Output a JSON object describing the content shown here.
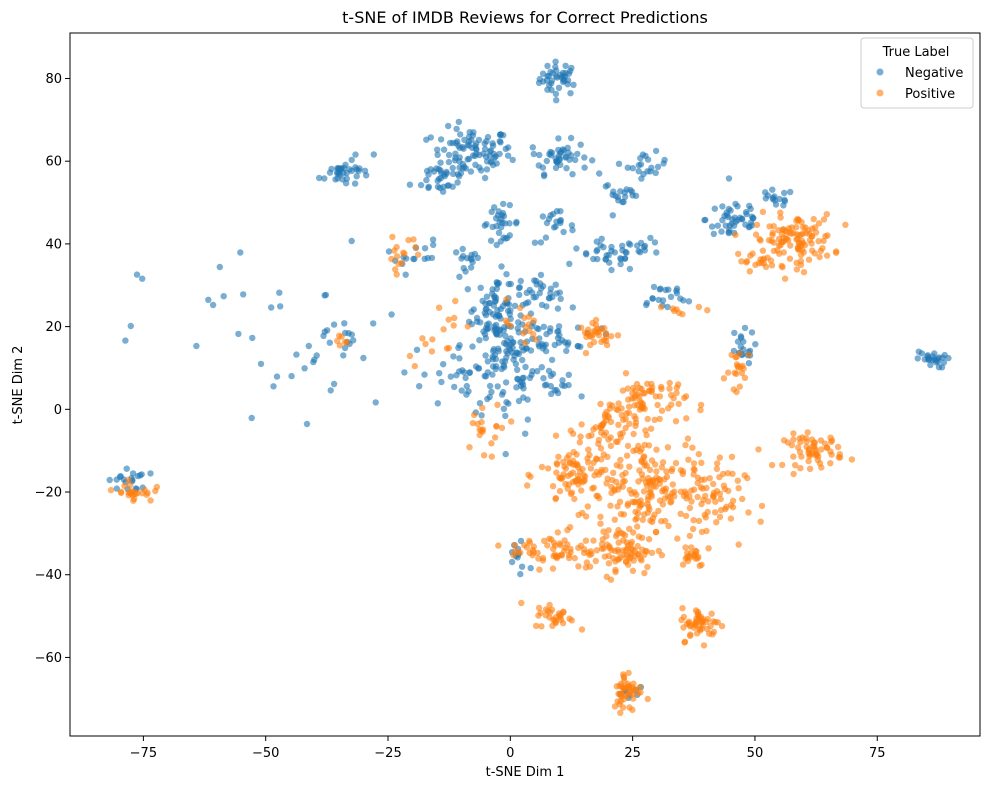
{
  "colors": {
    "negative": "#1f77b4",
    "positive": "#ff7f0e",
    "axis": "#000000",
    "background": "#ffffff"
  },
  "chart_data": {
    "type": "scatter",
    "title": "t-SNE of IMDB Reviews for Correct Predictions",
    "xlabel": "t-SNE Dim 1",
    "ylabel": "t-SNE Dim 2",
    "xlim": [
      -90,
      96
    ],
    "ylim": [
      -79,
      91
    ],
    "xticks": [
      -75,
      -50,
      -25,
      0,
      25,
      50,
      75
    ],
    "yticks": [
      -60,
      -40,
      -20,
      0,
      20,
      40,
      60,
      80
    ],
    "grid": false,
    "legend": {
      "title": "True Label",
      "placement": "top-right"
    },
    "point_alpha": 0.6,
    "series": [
      {
        "name": "Negative",
        "color": "#1f77b4",
        "clusters": [
          {
            "center": [
              10,
              80
            ],
            "spread": [
              2,
              2
            ],
            "n": 40
          },
          {
            "center": [
              -8,
              62
            ],
            "spread": [
              4,
              3
            ],
            "n": 90
          },
          {
            "center": [
              -14,
              56
            ],
            "spread": [
              3,
              2
            ],
            "n": 30
          },
          {
            "center": [
              10,
              61
            ],
            "spread": [
              3,
              2
            ],
            "n": 45
          },
          {
            "center": [
              -35,
              57
            ],
            "spread": [
              2,
              1.5
            ],
            "n": 25
          },
          {
            "center": [
              -32,
              59
            ],
            "spread": [
              2,
              1.5
            ],
            "n": 12
          },
          {
            "center": [
              28,
              59
            ],
            "spread": [
              2,
              1.5
            ],
            "n": 20
          },
          {
            "center": [
              23,
              52
            ],
            "spread": [
              2,
              1.5
            ],
            "n": 18
          },
          {
            "center": [
              -2,
              45
            ],
            "spread": [
              2,
              2
            ],
            "n": 30
          },
          {
            "center": [
              9,
              44
            ],
            "spread": [
              2,
              2
            ],
            "n": 20
          },
          {
            "center": [
              46,
              46
            ],
            "spread": [
              3,
              3
            ],
            "n": 45
          },
          {
            "center": [
              54,
              51
            ],
            "spread": [
              2,
              1
            ],
            "n": 15
          },
          {
            "center": [
              -9,
              35
            ],
            "spread": [
              1.5,
              2
            ],
            "n": 15
          },
          {
            "center": [
              20,
              37
            ],
            "spread": [
              3,
              2
            ],
            "n": 30
          },
          {
            "center": [
              28,
              39
            ],
            "spread": [
              2,
              1
            ],
            "n": 12
          },
          {
            "center": [
              -3,
              25
            ],
            "spread": [
              2,
              4
            ],
            "n": 55
          },
          {
            "center": [
              4,
              28
            ],
            "spread": [
              3,
              2
            ],
            "n": 20
          },
          {
            "center": [
              8,
              28
            ],
            "spread": [
              2,
              2
            ],
            "n": 15
          },
          {
            "center": [
              0,
              12
            ],
            "spread": [
              5,
              8
            ],
            "n": 130
          },
          {
            "center": [
              -10,
              8
            ],
            "spread": [
              4,
              4
            ],
            "n": 30
          },
          {
            "center": [
              10,
              18
            ],
            "spread": [
              4,
              2
            ],
            "n": 30
          },
          {
            "center": [
              31,
              27
            ],
            "spread": [
              3,
              2
            ],
            "n": 20
          },
          {
            "center": [
              47,
              15
            ],
            "spread": [
              1.5,
              2
            ],
            "n": 20
          },
          {
            "center": [
              86,
              12
            ],
            "spread": [
              1.5,
              1
            ],
            "n": 25
          },
          {
            "center": [
              -78,
              -17
            ],
            "spread": [
              2,
              1.5
            ],
            "n": 20
          },
          {
            "center": [
              -35,
              18
            ],
            "spread": [
              1.5,
              2
            ],
            "n": 12
          },
          {
            "center": [
              -20,
              37
            ],
            "spread": [
              3,
              2
            ],
            "n": 15
          },
          {
            "center": [
              -45,
              15
            ],
            "spread": [
              15,
              12
            ],
            "n": 40
          },
          {
            "center": [
              25,
              -69
            ],
            "spread": [
              2,
              1
            ],
            "n": 8
          },
          {
            "center": [
              10,
              5
            ],
            "spread": [
              2,
              2
            ],
            "n": 10
          },
          {
            "center": [
              2,
              -35
            ],
            "spread": [
              2,
              3
            ],
            "n": 12
          }
        ]
      },
      {
        "name": "Positive",
        "color": "#ff7f0e",
        "clusters": [
          {
            "center": [
              58,
              41
            ],
            "spread": [
              4,
              3
            ],
            "n": 110
          },
          {
            "center": [
              50,
              36
            ],
            "spread": [
              2,
              1
            ],
            "n": 15
          },
          {
            "center": [
              47,
              9
            ],
            "spread": [
              1.5,
              3
            ],
            "n": 20
          },
          {
            "center": [
              62,
              -10
            ],
            "spread": [
              3,
              2
            ],
            "n": 60
          },
          {
            "center": [
              18,
              18
            ],
            "spread": [
              2,
              1.5
            ],
            "n": 30
          },
          {
            "center": [
              28,
              2
            ],
            "spread": [
              4,
              3
            ],
            "n": 70
          },
          {
            "center": [
              14,
              -16
            ],
            "spread": [
              4,
              4
            ],
            "n": 90
          },
          {
            "center": [
              28,
              -18
            ],
            "spread": [
              5,
              6
            ],
            "n": 160
          },
          {
            "center": [
              40,
              -22
            ],
            "spread": [
              4,
              5
            ],
            "n": 70
          },
          {
            "center": [
              20,
              -5
            ],
            "spread": [
              3,
              3
            ],
            "n": 40
          },
          {
            "center": [
              22,
              -34
            ],
            "spread": [
              4,
              3
            ],
            "n": 90
          },
          {
            "center": [
              8,
              -34
            ],
            "spread": [
              4,
              2
            ],
            "n": 50
          },
          {
            "center": [
              37,
              -35
            ],
            "spread": [
              1.5,
              1.5
            ],
            "n": 20
          },
          {
            "center": [
              39,
              -52
            ],
            "spread": [
              2,
              2
            ],
            "n": 50
          },
          {
            "center": [
              9,
              -50
            ],
            "spread": [
              2,
              1.5
            ],
            "n": 30
          },
          {
            "center": [
              24,
              -68
            ],
            "spread": [
              1.5,
              2.5
            ],
            "n": 45
          },
          {
            "center": [
              -77,
              -20
            ],
            "spread": [
              2,
              1.2
            ],
            "n": 25
          },
          {
            "center": [
              -22,
              38
            ],
            "spread": [
              2,
              2
            ],
            "n": 15
          },
          {
            "center": [
              -35,
              17
            ],
            "spread": [
              1,
              1
            ],
            "n": 6
          },
          {
            "center": [
              2,
              20
            ],
            "spread": [
              2,
              3
            ],
            "n": 15
          },
          {
            "center": [
              -5,
              -5
            ],
            "spread": [
              4,
              4
            ],
            "n": 20
          },
          {
            "center": [
              -15,
              20
            ],
            "spread": [
              3,
              4
            ],
            "n": 15
          },
          {
            "center": [
              35,
              24
            ],
            "spread": [
              2,
              1
            ],
            "n": 8
          }
        ]
      }
    ]
  }
}
